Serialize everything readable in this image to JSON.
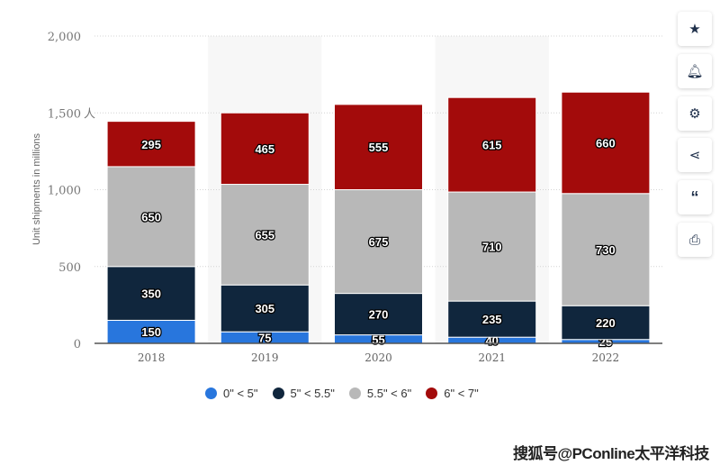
{
  "chart_data": {
    "type": "bar",
    "stacked": true,
    "categories": [
      "2018",
      "2019",
      "2020",
      "2021",
      "2022"
    ],
    "series": [
      {
        "name": "0\" < 5\"",
        "color": "#2876dd",
        "values": [
          150,
          75,
          55,
          40,
          25
        ]
      },
      {
        "name": "5\" < 5.5\"",
        "color": "#10263d",
        "values": [
          350,
          305,
          270,
          235,
          220
        ]
      },
      {
        "name": "5.5\" < 6\"",
        "color": "#b8b8b8",
        "values": [
          650,
          655,
          675,
          710,
          730
        ]
      },
      {
        "name": "6\" < 7\"",
        "color": "#a30b0b",
        "values": [
          295,
          465,
          555,
          615,
          660
        ]
      }
    ],
    "ylabel": "Unit shipments in millions",
    "xlabel": "",
    "ylim": [
      0,
      2000
    ],
    "yticks": [
      "0",
      "500",
      "1,000",
      "1,500",
      "2,000"
    ],
    "ytick_values": [
      0,
      500,
      1000,
      1500,
      2000
    ],
    "grid": true,
    "legend": "bottom"
  },
  "sidebar": {
    "icons": [
      "star-icon",
      "bell-icon",
      "gear-icon",
      "share-icon",
      "quote-icon",
      "print-icon"
    ]
  },
  "annotation": "人",
  "watermark": "搜狐号@PConline太平洋科技"
}
